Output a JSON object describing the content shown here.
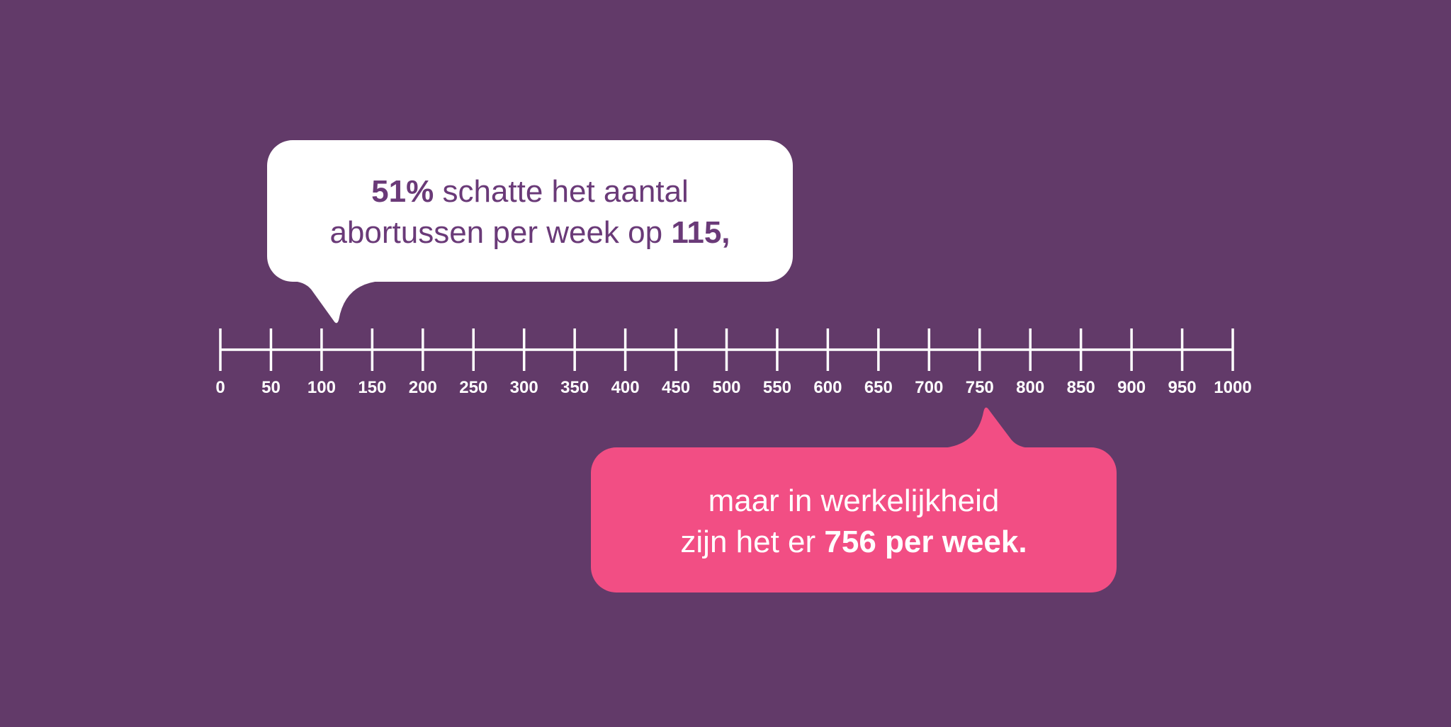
{
  "chart_data": {
    "type": "numberline",
    "xlim": [
      0,
      1000
    ],
    "xticks": [
      0,
      50,
      100,
      150,
      200,
      250,
      300,
      350,
      400,
      450,
      500,
      550,
      600,
      650,
      700,
      750,
      800,
      850,
      900,
      950,
      1000
    ],
    "background": "#623a69",
    "axis_color": "#ffffff",
    "annotations": [
      {
        "value": 115,
        "position": "above",
        "box_color": "#ffffff",
        "text_color": "#6a3a78",
        "lines": [
          [
            {
              "text": "51%",
              "bold": true
            },
            {
              "text": " schatte het aantal",
              "bold": false
            }
          ],
          [
            {
              "text": "abortussen per week op ",
              "bold": false
            },
            {
              "text": "115,",
              "bold": true
            }
          ]
        ]
      },
      {
        "value": 756,
        "position": "below",
        "box_color": "#f24e84",
        "text_color": "#ffffff",
        "lines": [
          [
            {
              "text": "maar in werkelijkheid",
              "bold": false
            }
          ],
          [
            {
              "text": "zijn het er ",
              "bold": false
            },
            {
              "text": "756 per week.",
              "bold": true
            }
          ]
        ]
      }
    ]
  }
}
